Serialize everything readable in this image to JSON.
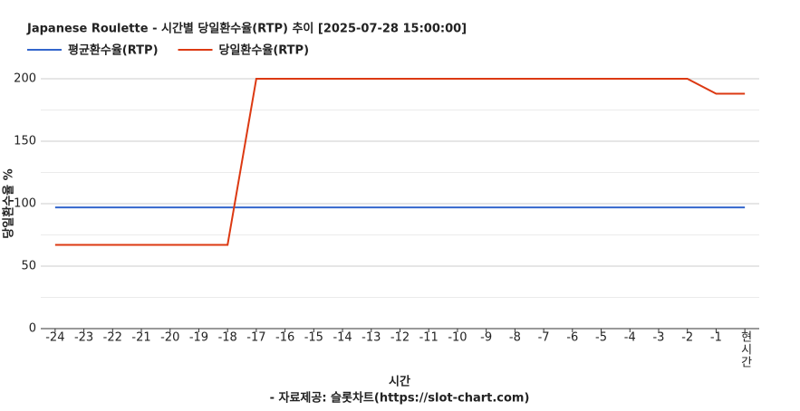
{
  "chart_data": {
    "type": "line",
    "title": "Japanese Roulette - 시간별 당일환수율(RTP) 추이 [2025-07-28 15:00:00]",
    "x_label": "시간",
    "y_label": "당일환수율 %",
    "source": "- 자료제공: 슬롯차트(https://slot-chart.com)",
    "categories": [
      "-24",
      "-23",
      "-22",
      "-21",
      "-20",
      "-19",
      "-18",
      "-17",
      "-16",
      "-15",
      "-14",
      "-13",
      "-12",
      "-11",
      "-10",
      "-9",
      "-8",
      "-7",
      "-6",
      "-5",
      "-4",
      "-3",
      "-2",
      "-1",
      "현시간"
    ],
    "series": [
      {
        "name": "평균환수율(RTP)",
        "color": "#3366cc",
        "values": [
          97,
          97,
          97,
          97,
          97,
          97,
          97,
          97,
          97,
          97,
          97,
          97,
          97,
          97,
          97,
          97,
          97,
          97,
          97,
          97,
          97,
          97,
          97,
          97,
          97
        ]
      },
      {
        "name": "당일환수율(RTP)",
        "color": "#dc3912",
        "values": [
          67,
          67,
          67,
          67,
          67,
          67,
          67,
          200,
          200,
          200,
          200,
          200,
          200,
          200,
          200,
          200,
          200,
          200,
          200,
          200,
          200,
          200,
          200,
          188,
          188
        ]
      }
    ],
    "ylim": [
      0,
      200
    ],
    "yticks": [
      0,
      50,
      100,
      150,
      200
    ],
    "grid": true,
    "legend": "top"
  }
}
